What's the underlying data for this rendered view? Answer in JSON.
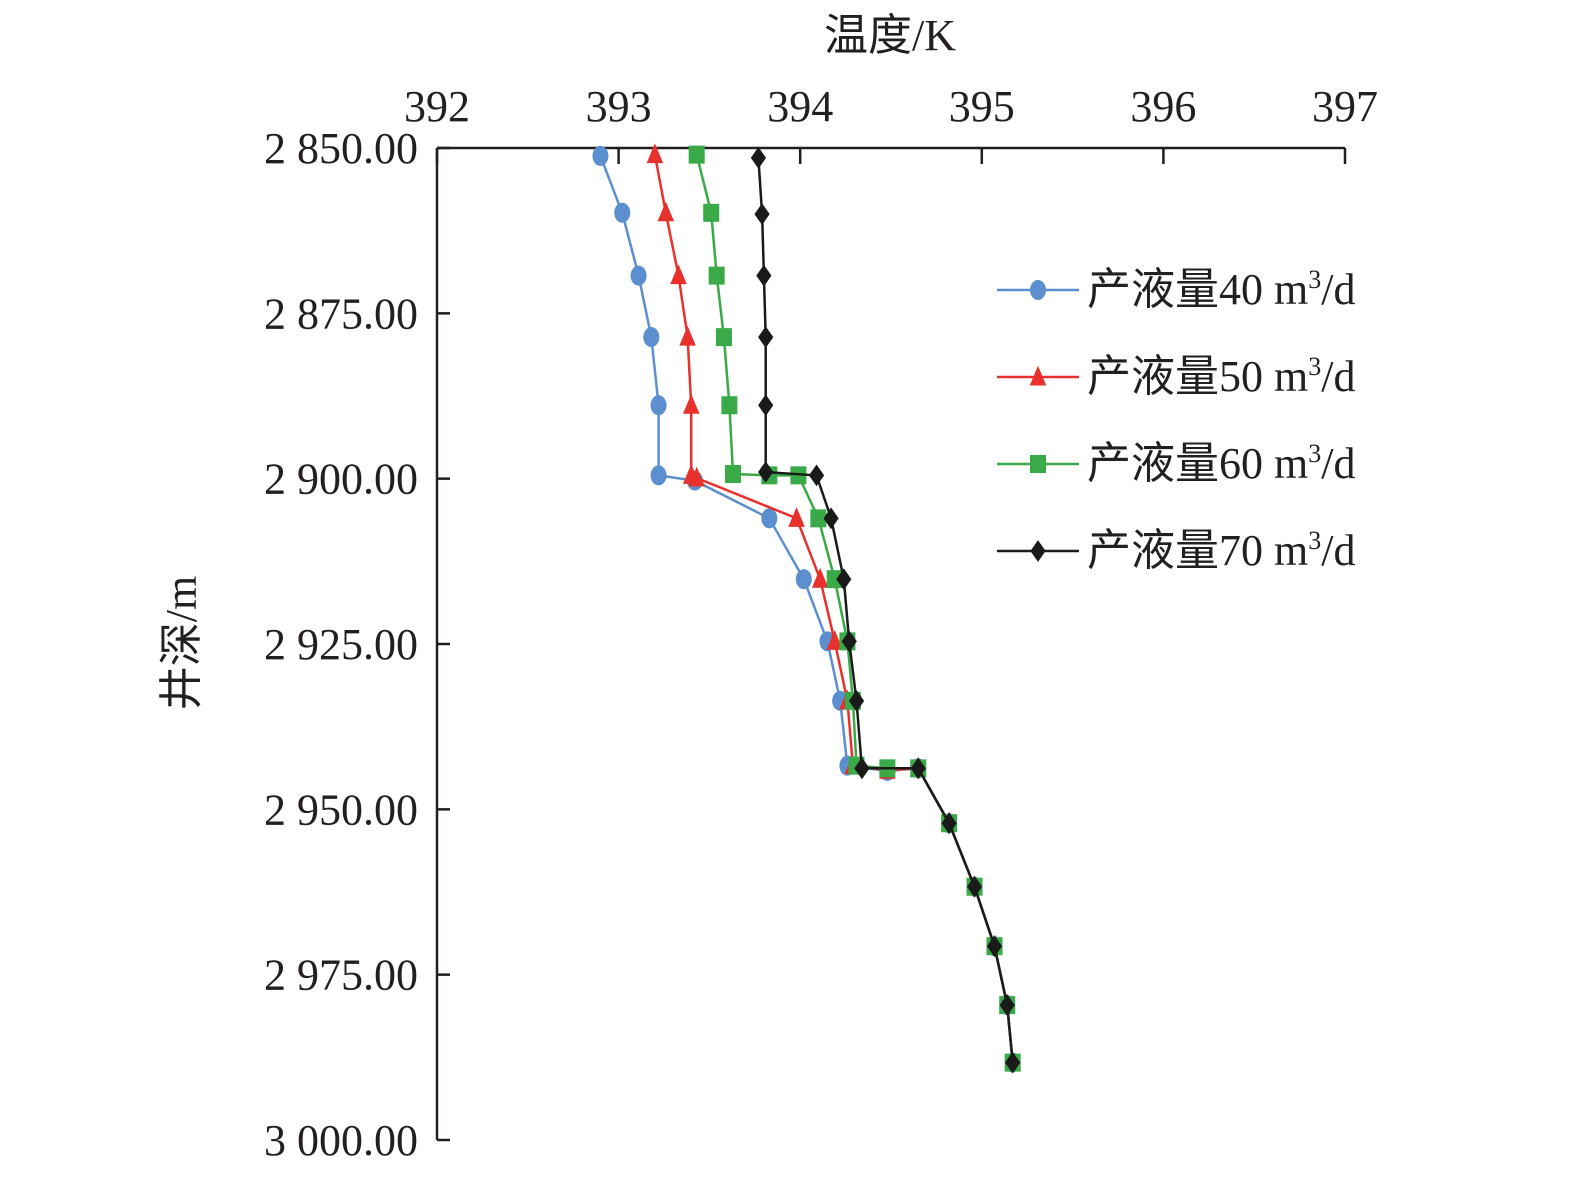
{
  "chart_data": {
    "type": "line",
    "xlabel": "温度/K",
    "ylabel": "井深/m",
    "xlim": [
      392,
      397
    ],
    "ylim": [
      2850,
      3000
    ],
    "x_axis_position": "top",
    "y_axis_inverted": true,
    "grid": false,
    "legend_position": "right",
    "x_ticks": [
      "392",
      "393",
      "394",
      "395",
      "396",
      "397"
    ],
    "y_ticks": [
      "2 850.00",
      "2 875.00",
      "2 900.00",
      "2 925.00",
      "2 950.00",
      "2 975.00",
      "3 000.00"
    ],
    "series": [
      {
        "name_prefix": "产液量40 m",
        "name_sup": "3",
        "name_suffix": "/d",
        "color": "#5b8fd0",
        "marker": "circle",
        "x": [
          392.9,
          393.02,
          393.11,
          393.18,
          393.22,
          393.22,
          393.42,
          393.83,
          394.02,
          394.15,
          394.22,
          394.26,
          394.48,
          394.65,
          394.82,
          394.96,
          395.07,
          395.14,
          395.17
        ],
        "y": [
          2851.2,
          2859.8,
          2869.3,
          2878.6,
          2888.9,
          2899.5,
          2900.3,
          2906.0,
          2915.2,
          2924.6,
          2933.6,
          2943.4,
          2944.2,
          2943.8,
          2952.1,
          2961.7,
          2970.7,
          2979.6,
          2988.3
        ]
      },
      {
        "name_prefix": "产液量50 m",
        "name_sup": "3",
        "name_suffix": "/d",
        "color": "#e8302d",
        "marker": "triangle",
        "x": [
          393.2,
          393.26,
          393.33,
          393.38,
          393.4,
          393.4,
          393.43,
          393.98,
          394.11,
          394.19,
          394.26,
          394.29,
          394.48,
          394.65,
          394.82,
          394.96,
          395.07,
          395.14,
          395.17
        ],
        "y": [
          2851.0,
          2859.8,
          2869.3,
          2878.6,
          2888.9,
          2899.5,
          2899.9,
          2906.0,
          2915.2,
          2924.6,
          2933.6,
          2943.4,
          2944.1,
          2943.8,
          2952.1,
          2961.7,
          2970.7,
          2979.6,
          2988.3
        ]
      },
      {
        "name_prefix": "产液量60 m",
        "name_sup": "3",
        "name_suffix": "/d",
        "color": "#3aaa48",
        "marker": "square",
        "x": [
          393.43,
          393.51,
          393.54,
          393.58,
          393.61,
          393.63,
          393.83,
          393.99,
          394.1,
          394.19,
          394.26,
          394.29,
          394.31,
          394.48,
          394.65,
          394.82,
          394.96,
          395.07,
          395.14,
          395.17
        ],
        "y": [
          2851.0,
          2859.8,
          2869.3,
          2878.6,
          2888.9,
          2899.3,
          2899.5,
          2899.5,
          2906.0,
          2915.2,
          2924.6,
          2933.6,
          2943.4,
          2943.8,
          2943.8,
          2952.1,
          2961.7,
          2970.7,
          2979.6,
          2988.3
        ]
      },
      {
        "name_prefix": "产液量70 m",
        "name_sup": "3",
        "name_suffix": "/d",
        "color": "#1a1a1a",
        "marker": "diamond",
        "x": [
          393.77,
          393.79,
          393.8,
          393.81,
          393.81,
          393.81,
          394.09,
          394.17,
          394.24,
          394.27,
          394.31,
          394.34,
          394.65,
          394.82,
          394.96,
          395.07,
          395.14,
          395.17
        ],
        "y": [
          2851.5,
          2860.0,
          2869.3,
          2878.6,
          2888.9,
          2899.0,
          2899.5,
          2906.0,
          2915.2,
          2924.6,
          2933.6,
          2943.8,
          2943.8,
          2952.1,
          2961.7,
          2970.7,
          2979.6,
          2988.3
        ]
      }
    ]
  }
}
